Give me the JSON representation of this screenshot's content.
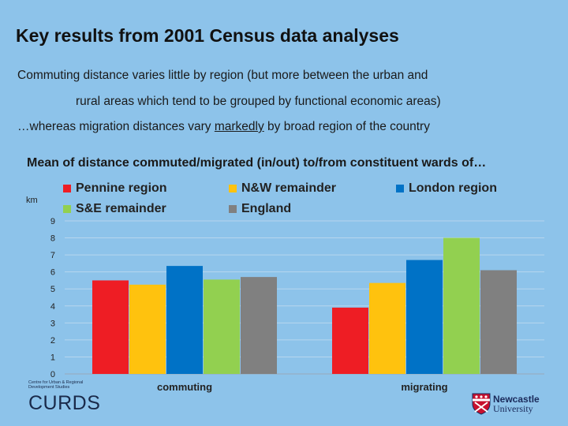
{
  "slide": {
    "title": "Key results from 2001 Census data analyses",
    "line1": "Commuting distance varies little by region (but more between the urban and",
    "line2": "rural areas which tend to be grouped by functional economic areas)",
    "line3_a": "…whereas migration distances vary ",
    "line3_b": "markedly",
    "line3_c": " by broad region of the country"
  },
  "chart_data": {
    "type": "bar",
    "title": "Mean of distance commuted/migrated (in/out) to/from constituent wards of…",
    "ylabel": "km",
    "xlabel": "",
    "categories": [
      "commuting",
      "migrating"
    ],
    "series": [
      {
        "name": "Pennine region",
        "color": "#ee1d24",
        "values": [
          5.5,
          3.9
        ]
      },
      {
        "name": "N&W remainder",
        "color": "#ffc20e",
        "values": [
          5.25,
          5.35
        ]
      },
      {
        "name": "London region",
        "color": "#0072c6",
        "values": [
          6.35,
          6.7
        ]
      },
      {
        "name": "S&E remainder",
        "color": "#92d050",
        "values": [
          5.55,
          8.0
        ]
      },
      {
        "name": "England",
        "color": "#808080",
        "values": [
          5.7,
          6.1
        ]
      }
    ],
    "ylim": [
      0,
      9
    ],
    "yticks": [
      "0",
      "1",
      "2",
      "3",
      "4",
      "5",
      "6",
      "7",
      "8",
      "9"
    ],
    "grid": true,
    "legend_position": "top"
  },
  "logos": {
    "curds_small": "Centre for Urban & Regional Development Studies",
    "curds_big": "CURDS",
    "ncl_line1": "Newcastle",
    "ncl_line2": "University"
  },
  "colors": {
    "background": "#8dc3ea",
    "grid": "#b7d6ee"
  }
}
